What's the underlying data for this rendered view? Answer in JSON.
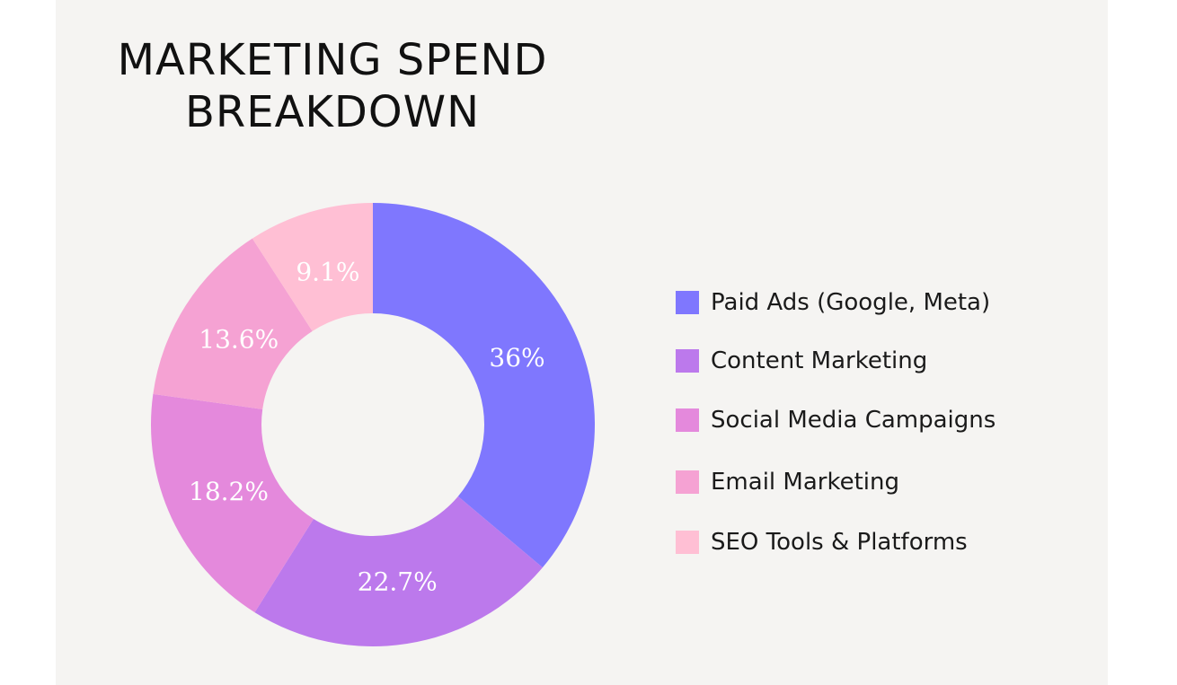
{
  "title_lines": [
    "MARKETING SPEND",
    "BREAKDOWN"
  ],
  "chart_data": {
    "type": "pie",
    "variant": "donut",
    "title": "MARKETING SPEND BREAKDOWN",
    "legend_position": "right",
    "categories": [
      "Paid Ads (Google, Meta)",
      "Content Marketing",
      "Social Media Campaigns",
      "Email Marketing",
      "SEO Tools & Platforms"
    ],
    "values": [
      36,
      22.7,
      18.2,
      13.6,
      9.1
    ],
    "labels": [
      "36%",
      "22.7%",
      "18.2%",
      "13.6%",
      "9.1%"
    ],
    "colors": [
      "#7f77fe",
      "#bc79ec",
      "#e489dc",
      "#f5a2d3",
      "#ffbfd4"
    ]
  }
}
